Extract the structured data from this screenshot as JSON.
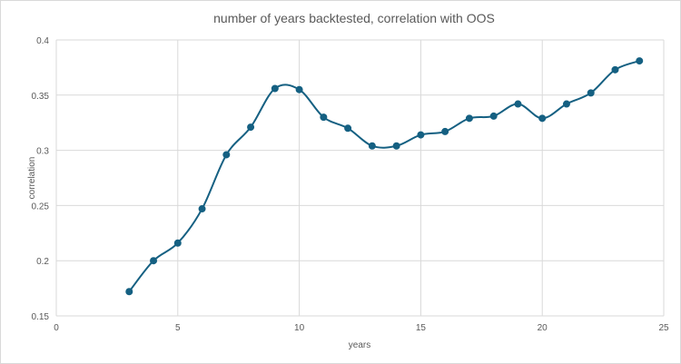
{
  "chart_data": {
    "type": "line",
    "title": "number of years backtested, correlation with OOS",
    "xlabel": "years",
    "ylabel": "correlation",
    "xlim": [
      0,
      25
    ],
    "ylim": [
      0.15,
      0.4
    ],
    "x_ticks": [
      0,
      5,
      10,
      15,
      20,
      25
    ],
    "y_ticks": [
      0.15,
      0.2,
      0.25,
      0.3,
      0.35,
      0.4
    ],
    "y_tick_labels": [
      "0.15",
      "0.2",
      "0.25",
      "0.3",
      "0.35",
      "0.4"
    ],
    "grid": true,
    "legend": "none",
    "smooth": true,
    "markers": true,
    "series": [
      {
        "name": "correlation",
        "color": "#156082",
        "x": [
          3,
          4,
          5,
          6,
          7,
          8,
          9,
          10,
          11,
          12,
          13,
          14,
          15,
          16,
          17,
          18,
          19,
          20,
          21,
          22,
          23,
          24
        ],
        "values": [
          0.172,
          0.2,
          0.216,
          0.247,
          0.296,
          0.321,
          0.356,
          0.355,
          0.33,
          0.32,
          0.304,
          0.304,
          0.314,
          0.317,
          0.329,
          0.331,
          0.342,
          0.329,
          0.342,
          0.352,
          0.373,
          0.381
        ]
      }
    ]
  },
  "colors": {
    "line": "#156082",
    "grid": "#d9d9d9",
    "text": "#595959"
  }
}
